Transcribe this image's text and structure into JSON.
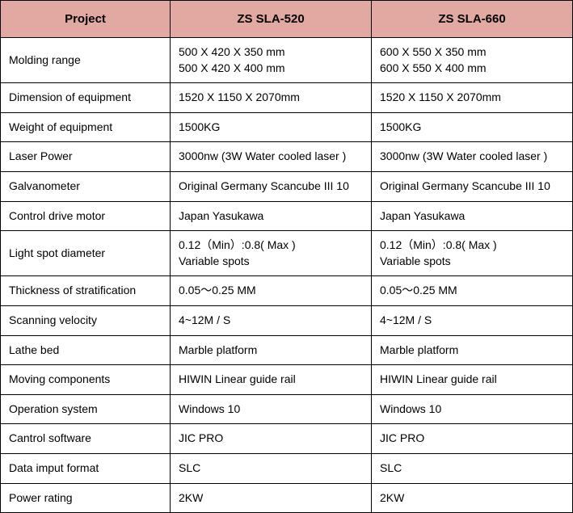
{
  "table": {
    "header_bg": "#e2a9a3",
    "border_color": "#000000",
    "columns": [
      "Project",
      "ZS SLA-520",
      "ZS SLA-660"
    ],
    "rows": [
      {
        "label": "Molding range",
        "v1": "500 X 420 X 350 mm\n500 X 420 X 400 mm",
        "v2": "600 X 550 X 350 mm\n600 X 550 X 400 mm"
      },
      {
        "label": "Dimension of equipment",
        "v1": "1520 X 1150 X 2070mm",
        "v2": "1520 X 1150 X 2070mm"
      },
      {
        "label": "Weight of equipment",
        "v1": "1500KG",
        "v2": "1500KG"
      },
      {
        "label": "Laser Power",
        "v1": "3000nw (3W Water cooled laser )",
        "v2": "3000nw (3W Water cooled laser )"
      },
      {
        "label": "Galvanometer",
        "v1": "Original Germany Scancube III 10",
        "v2": "Original Germany Scancube III 10"
      },
      {
        "label": "Control drive motor",
        "v1": "Japan Yasukawa",
        "v2": "Japan Yasukawa"
      },
      {
        "label": "Light spot diameter",
        "v1": "0.12（Min）:0.8( Max )\nVariable spots",
        "v2": "0.12（Min）:0.8( Max )\nVariable spots"
      },
      {
        "label": "Thickness of stratification",
        "v1": "0.05～0.25 MM",
        "v2": "0.05～0.25 MM"
      },
      {
        "label": "Scanning velocity",
        "v1": "4~12M / S",
        "v2": "4~12M / S"
      },
      {
        "label": "Lathe bed",
        "v1": "Marble platform",
        "v2": "Marble platform"
      },
      {
        "label": "Moving components",
        "v1": "HIWIN Linear guide rail",
        "v2": "HIWIN Linear guide rail"
      },
      {
        "label": "Operation system",
        "v1": "Windows 10",
        "v2": "Windows 10"
      },
      {
        "label": "Cantrol software",
        "v1": "JIC PRO",
        "v2": "JIC PRO"
      },
      {
        "label": "Data imput format",
        "v1": "SLC",
        "v2": "SLC"
      },
      {
        "label": "Power rating",
        "v1": "2KW",
        "v2": "2KW"
      }
    ]
  }
}
